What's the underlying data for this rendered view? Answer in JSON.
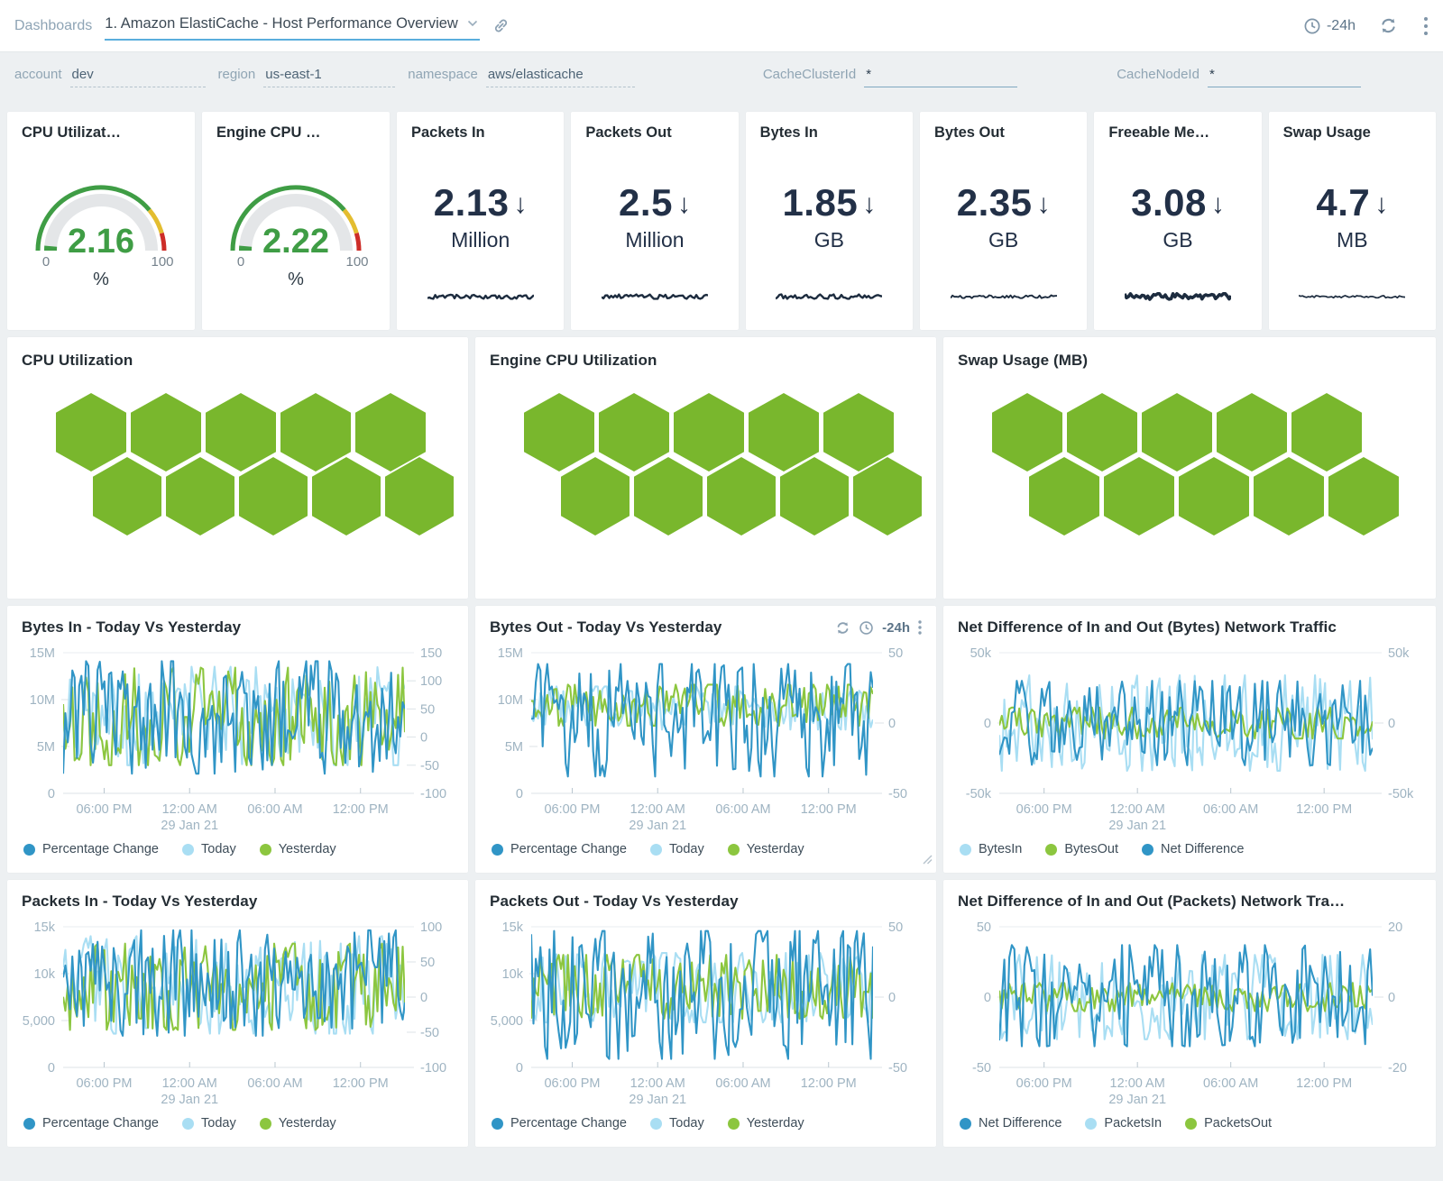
{
  "colors": {
    "blue": "#3095c6",
    "light_blue": "#a9def3",
    "green": "#8cc63f",
    "hex_green": "#79b72d",
    "gauge_green": "#3f9d45",
    "gauge_yellow": "#e3bd30",
    "gauge_red": "#cd2d28",
    "gauge_track": "#e4e6e8",
    "spark": "#1d2c3f",
    "axis_text": "#9fb4c2",
    "icon": "#7f95a8"
  },
  "topbar": {
    "breadcrumb": "Dashboards",
    "title": "1. Amazon ElastiCache - Host Performance Overview",
    "time_range": "-24h"
  },
  "filters": [
    {
      "label": "account",
      "value": "dev",
      "underline": "dashed"
    },
    {
      "label": "region",
      "value": "us-east-1",
      "underline": "dashed"
    },
    {
      "label": "namespace",
      "value": "aws/elasticache",
      "underline": "dashed"
    },
    {
      "label": "CacheClusterId",
      "value": "*",
      "underline": "solid"
    },
    {
      "label": "CacheNodeId",
      "value": "*",
      "underline": "solid"
    }
  ],
  "stat_cards": [
    {
      "type": "gauge",
      "title": "CPU Utilizat…",
      "value": "2.16",
      "min_label": "0",
      "max_label": "100",
      "unit": "%"
    },
    {
      "type": "gauge",
      "title": "Engine CPU …",
      "value": "2.22",
      "min_label": "0",
      "max_label": "100",
      "unit": "%"
    },
    {
      "type": "stat",
      "title": "Packets In",
      "value": "2.13",
      "trend": "down",
      "unit": "Million",
      "spark_amp": 2.4,
      "spark_stroke": 2.4,
      "seed": 41
    },
    {
      "type": "stat",
      "title": "Packets Out",
      "value": "2.5",
      "trend": "down",
      "unit": "Million",
      "spark_amp": 2.4,
      "spark_stroke": 2.4,
      "seed": 42
    },
    {
      "type": "stat",
      "title": "Bytes In",
      "value": "1.85",
      "trend": "down",
      "unit": "GB",
      "spark_amp": 2.4,
      "spark_stroke": 2.4,
      "seed": 43
    },
    {
      "type": "stat",
      "title": "Bytes Out",
      "value": "2.35",
      "trend": "down",
      "unit": "GB",
      "spark_amp": 1.7,
      "spark_stroke": 1.9,
      "seed": 44
    },
    {
      "type": "stat",
      "title": "Freeable Me…",
      "value": "3.08",
      "trend": "down",
      "unit": "GB",
      "spark_amp": 3.2,
      "spark_stroke": 3.6,
      "seed": 45
    },
    {
      "type": "stat",
      "title": "Swap Usage",
      "value": "4.7",
      "trend": "down",
      "unit": "MB",
      "spark_amp": 1.3,
      "spark_stroke": 1.7,
      "seed": 46
    }
  ],
  "honeycomb_panels": [
    {
      "title": "CPU Utilization",
      "hex_rows": [
        5,
        5
      ]
    },
    {
      "title": "Engine CPU Utilization",
      "hex_rows": [
        5,
        5
      ]
    },
    {
      "title": "Swap Usage (MB)",
      "hex_rows": [
        5,
        5
      ]
    }
  ],
  "chart_data": [
    {
      "type": "line",
      "title": "Bytes In - Today Vs Yesterday",
      "x_ticks": [
        "06:00 PM",
        "12:00 AM",
        "06:00 AM",
        "12:00 PM"
      ],
      "x_date": "29 Jan 21",
      "left_axis": {
        "ticks": [
          [
            "15M",
            15
          ],
          [
            "10M",
            10
          ],
          [
            "5M",
            5
          ],
          [
            "0",
            0
          ]
        ],
        "max": 15,
        "min": 0
      },
      "right_axis": {
        "ticks": [
          [
            "150",
            150
          ],
          [
            "100",
            100
          ],
          [
            "50",
            50
          ],
          [
            "0",
            0
          ],
          [
            "-50",
            -50
          ],
          [
            "-100",
            -100
          ]
        ],
        "max": 150,
        "min": -100
      },
      "legend": [
        {
          "label": "Percentage Change",
          "color": "blue"
        },
        {
          "label": "Today",
          "color": "light_blue"
        },
        {
          "label": "Yesterday",
          "color": "green"
        }
      ],
      "series": [
        {
          "name": "Today",
          "axis": "left",
          "color": "light_blue",
          "approx_min": 3,
          "approx_max": 13.5,
          "seed": 21
        },
        {
          "name": "Yesterday",
          "axis": "left",
          "color": "green",
          "approx_min": 3,
          "approx_max": 13.4,
          "seed": 22
        },
        {
          "name": "Percentage Change",
          "axis": "right",
          "color": "blue",
          "approx_min": -65,
          "approx_max": 135,
          "seed": 23
        }
      ],
      "has_controls": false
    },
    {
      "type": "line",
      "title": "Bytes Out - Today Vs Yesterday",
      "x_ticks": [
        "06:00 PM",
        "12:00 AM",
        "06:00 AM",
        "12:00 PM"
      ],
      "x_date": "29 Jan 21",
      "left_axis": {
        "ticks": [
          [
            "15M",
            15
          ],
          [
            "10M",
            10
          ],
          [
            "5M",
            5
          ],
          [
            "0",
            0
          ]
        ],
        "max": 15,
        "min": 0
      },
      "right_axis": {
        "ticks": [
          [
            "50",
            50
          ],
          [
            "0",
            0
          ],
          [
            "-50",
            -50
          ]
        ],
        "max": 50,
        "min": -50
      },
      "legend": [
        {
          "label": "Percentage Change",
          "color": "blue"
        },
        {
          "label": "Today",
          "color": "light_blue"
        },
        {
          "label": "Yesterday",
          "color": "green"
        }
      ],
      "series": [
        {
          "name": "Today",
          "axis": "left",
          "color": "light_blue",
          "approx_min": 6.8,
          "approx_max": 11.4,
          "seed": 24
        },
        {
          "name": "Yesterday",
          "axis": "left",
          "color": "green",
          "approx_min": 7.2,
          "approx_max": 11.6,
          "seed": 25
        },
        {
          "name": "Percentage Change",
          "axis": "right",
          "color": "blue",
          "approx_min": -38,
          "approx_max": 42,
          "seed": 26
        }
      ],
      "has_controls": true,
      "controls_time": "-24h"
    },
    {
      "type": "line",
      "title": "Net Difference of In and Out (Bytes) Network Traffic",
      "x_ticks": [
        "06:00 PM",
        "12:00 AM",
        "06:00 AM",
        "12:00 PM"
      ],
      "x_date": "29 Jan 21",
      "left_axis": {
        "ticks": [
          [
            "50k",
            50
          ],
          [
            "0",
            0
          ],
          [
            "-50k",
            -50
          ]
        ],
        "max": 50,
        "min": -50
      },
      "right_axis": {
        "ticks": [
          [
            "50k",
            50
          ],
          [
            "0",
            0
          ],
          [
            "-50k",
            -50
          ]
        ],
        "max": 50,
        "min": -50
      },
      "legend": [
        {
          "label": "BytesIn",
          "color": "light_blue"
        },
        {
          "label": "BytesOut",
          "color": "green"
        },
        {
          "label": "Net Difference",
          "color": "blue"
        }
      ],
      "series": [
        {
          "name": "BytesIn",
          "axis": "left",
          "color": "light_blue",
          "approx_min": -34,
          "approx_max": 34,
          "seed": 27
        },
        {
          "name": "BytesOut",
          "axis": "left",
          "color": "green",
          "approx_min": -11,
          "approx_max": 11,
          "seed": 28
        },
        {
          "name": "Net Difference",
          "axis": "left",
          "color": "blue",
          "approx_min": -30,
          "approx_max": 30,
          "seed": 29
        }
      ],
      "has_controls": false
    },
    {
      "type": "line",
      "title": "Packets In - Today Vs Yesterday",
      "x_ticks": [
        "06:00 PM",
        "12:00 AM",
        "06:00 AM",
        "12:00 PM"
      ],
      "x_date": "29 Jan 21",
      "left_axis": {
        "ticks": [
          [
            "15k",
            15
          ],
          [
            "10k",
            10
          ],
          [
            "5,000",
            5
          ],
          [
            "0",
            0
          ]
        ],
        "max": 15,
        "min": 0
      },
      "right_axis": {
        "ticks": [
          [
            "100",
            100
          ],
          [
            "50",
            50
          ],
          [
            "0",
            0
          ],
          [
            "-50",
            -50
          ],
          [
            "-100",
            -100
          ]
        ],
        "max": 100,
        "min": -100
      },
      "legend": [
        {
          "label": "Percentage Change",
          "color": "blue"
        },
        {
          "label": "Today",
          "color": "light_blue"
        },
        {
          "label": "Yesterday",
          "color": "green"
        }
      ],
      "series": [
        {
          "name": "Today",
          "axis": "left",
          "color": "light_blue",
          "approx_min": 3.6,
          "approx_max": 14,
          "seed": 31
        },
        {
          "name": "Yesterday",
          "axis": "left",
          "color": "green",
          "approx_min": 4,
          "approx_max": 13.2,
          "seed": 32
        },
        {
          "name": "Percentage Change",
          "axis": "right",
          "color": "blue",
          "approx_min": -55,
          "approx_max": 95,
          "seed": 33
        }
      ],
      "has_controls": false
    },
    {
      "type": "line",
      "title": "Packets Out - Today Vs Yesterday",
      "x_ticks": [
        "06:00 PM",
        "12:00 AM",
        "06:00 AM",
        "12:00 PM"
      ],
      "x_date": "29 Jan 21",
      "left_axis": {
        "ticks": [
          [
            "15k",
            15
          ],
          [
            "10k",
            10
          ],
          [
            "5,000",
            5
          ],
          [
            "0",
            0
          ]
        ],
        "max": 15,
        "min": 0
      },
      "right_axis": {
        "ticks": [
          [
            "50",
            50
          ],
          [
            "0",
            0
          ],
          [
            "-50",
            -50
          ]
        ],
        "max": 50,
        "min": -50
      },
      "legend": [
        {
          "label": "Percentage Change",
          "color": "blue"
        },
        {
          "label": "Today",
          "color": "light_blue"
        },
        {
          "label": "Yesterday",
          "color": "green"
        }
      ],
      "series": [
        {
          "name": "Today",
          "axis": "left",
          "color": "light_blue",
          "approx_min": 4.8,
          "approx_max": 12.2,
          "seed": 34
        },
        {
          "name": "Yesterday",
          "axis": "left",
          "color": "green",
          "approx_min": 5.2,
          "approx_max": 12,
          "seed": 35
        },
        {
          "name": "Percentage Change",
          "axis": "right",
          "color": "blue",
          "approx_min": -44,
          "approx_max": 47,
          "seed": 36
        }
      ],
      "has_controls": false
    },
    {
      "type": "line",
      "title": "Net Difference of In and Out (Packets) Network Tra…",
      "x_ticks": [
        "06:00 PM",
        "12:00 AM",
        "06:00 AM",
        "12:00 PM"
      ],
      "x_date": "29 Jan 21",
      "left_axis": {
        "ticks": [
          [
            "50",
            50
          ],
          [
            "0",
            0
          ],
          [
            "-50",
            -50
          ]
        ],
        "max": 50,
        "min": -50
      },
      "right_axis": {
        "ticks": [
          [
            "20",
            20
          ],
          [
            "0",
            0
          ],
          [
            "-20",
            -20
          ]
        ],
        "max": 20,
        "min": -20
      },
      "legend": [
        {
          "label": "Net Difference",
          "color": "blue"
        },
        {
          "label": "PacketsIn",
          "color": "light_blue"
        },
        {
          "label": "PacketsOut",
          "color": "green"
        }
      ],
      "series": [
        {
          "name": "PacketsIn",
          "axis": "left",
          "color": "light_blue",
          "approx_min": -30,
          "approx_max": 30,
          "seed": 37
        },
        {
          "name": "PacketsOut",
          "axis": "left",
          "color": "green",
          "approx_min": -10,
          "approx_max": 10,
          "seed": 38
        },
        {
          "name": "Net Difference",
          "axis": "left",
          "color": "blue",
          "approx_min": -35,
          "approx_max": 37,
          "seed": 39
        }
      ],
      "has_controls": false
    }
  ]
}
